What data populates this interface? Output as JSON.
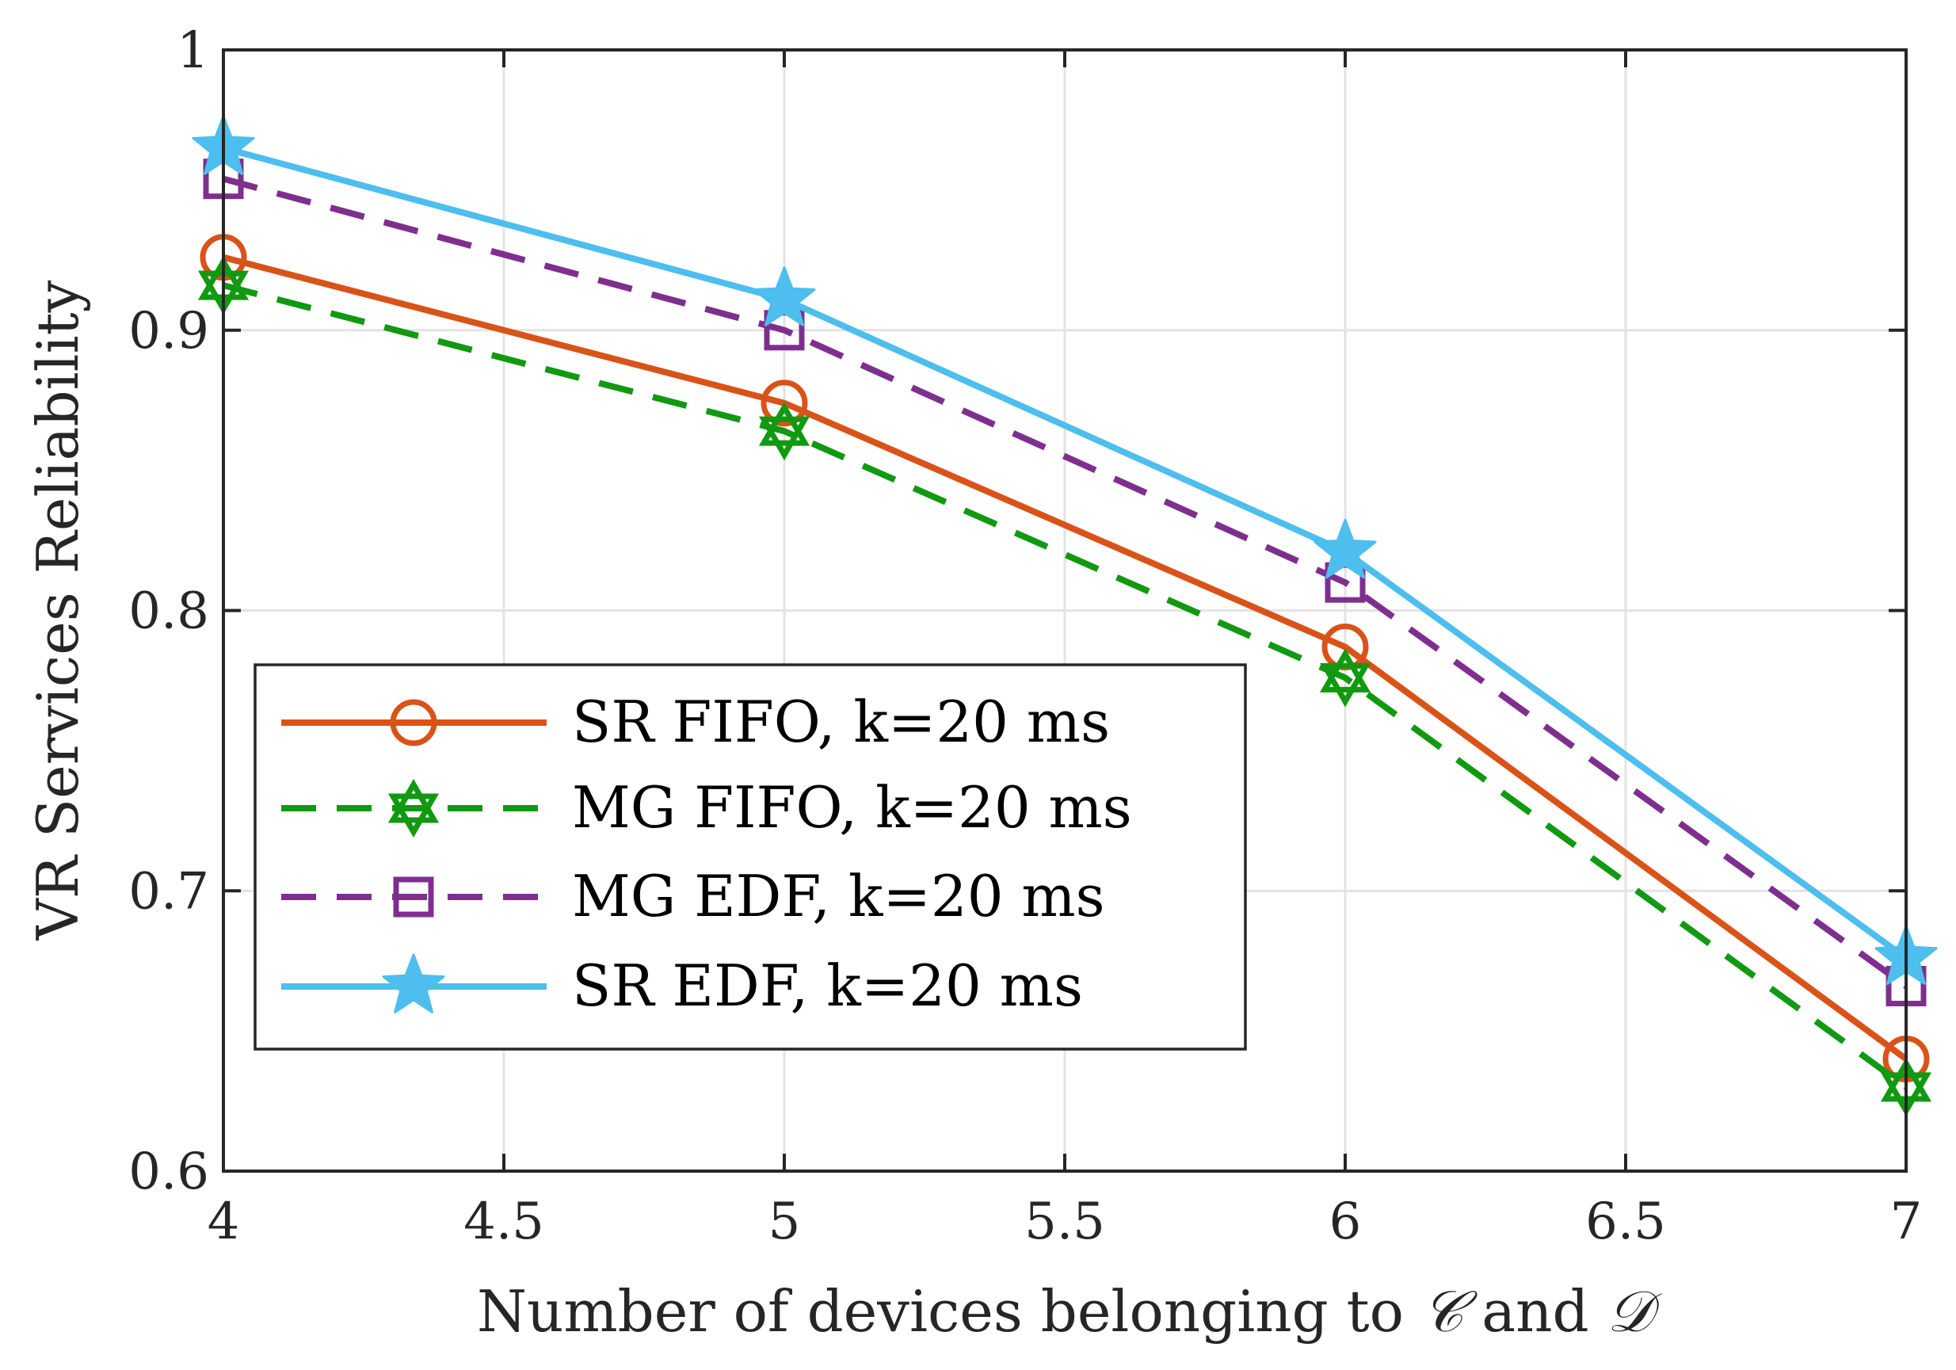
{
  "chart_data": {
    "type": "line",
    "title": "",
    "xlabel_prefix": "Number of devices belonging to",
    "xlabel_set1": "𝒞",
    "xlabel_and": "and",
    "xlabel_set2": "𝒟",
    "ylabel": "VR Services Reliability",
    "x": [
      4,
      5,
      6,
      7
    ],
    "xlim": [
      4,
      7
    ],
    "ylim": [
      0.6,
      1
    ],
    "xticks": [
      4,
      4.5,
      5,
      5.5,
      6,
      6.5,
      7
    ],
    "xtick_labels": [
      "4",
      "4.5",
      "5",
      "5.5",
      "6",
      "6.5",
      "7"
    ],
    "yticks": [
      0.6,
      0.7,
      0.8,
      0.9,
      1
    ],
    "ytick_labels": [
      "0.6",
      "0.7",
      "0.8",
      "0.9",
      "1"
    ],
    "grid": true,
    "legend_position": "bottom-left",
    "series": [
      {
        "name": "SR FIFO, k=20 ms",
        "values": [
          0.926,
          0.874,
          0.787,
          0.64
        ],
        "color": "#D95319",
        "dash": "solid",
        "marker": "circle"
      },
      {
        "name": "MG FIFO, k=20 ms",
        "values": [
          0.916,
          0.864,
          0.776,
          0.63
        ],
        "color": "#119911",
        "dash": "dashed",
        "marker": "hexagram"
      },
      {
        "name": "MG EDF, k=20 ms",
        "values": [
          0.954,
          0.9,
          0.81,
          0.666
        ],
        "color": "#7E2F8E",
        "dash": "dashed",
        "marker": "square"
      },
      {
        "name": "SR EDF, k=20 ms",
        "values": [
          0.965,
          0.911,
          0.821,
          0.676
        ],
        "color": "#4DBEEE",
        "dash": "solid",
        "marker": "pentagram"
      }
    ]
  }
}
